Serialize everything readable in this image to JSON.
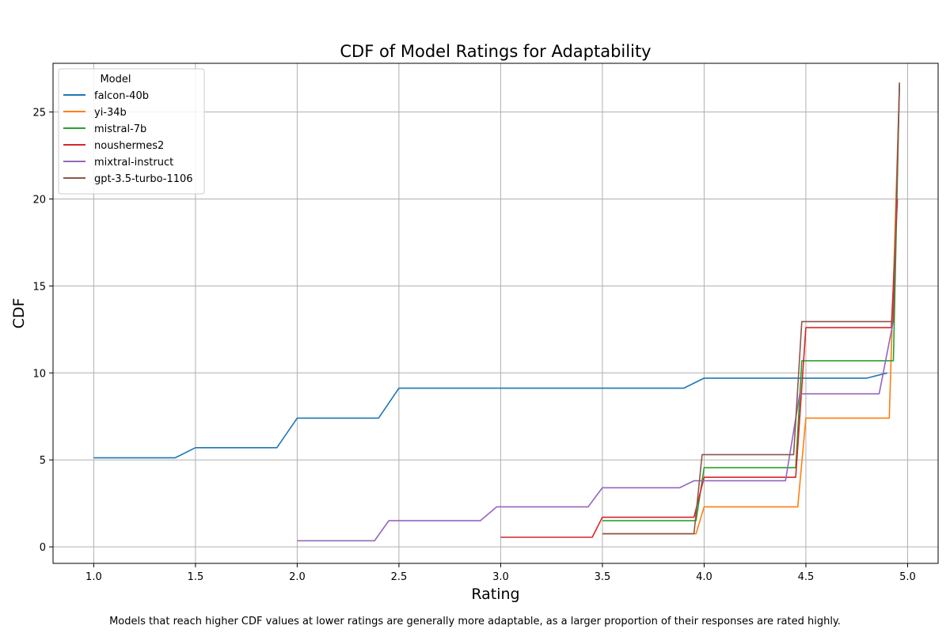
{
  "chart_data": {
    "type": "line",
    "title": "CDF of Model Ratings for Adaptability",
    "xlabel": "Rating",
    "ylabel": "CDF",
    "xlim": [
      0.8,
      5.15
    ],
    "ylim": [
      -0.95,
      27.8
    ],
    "xticks": [
      1.0,
      1.5,
      2.0,
      2.5,
      3.0,
      3.5,
      4.0,
      4.5,
      5.0
    ],
    "xtick_labels": [
      "1.0",
      "1.5",
      "2.0",
      "2.5",
      "3.0",
      "3.5",
      "4.0",
      "4.5",
      "5.0"
    ],
    "yticks": [
      0,
      5,
      10,
      15,
      20,
      25
    ],
    "ytick_labels": [
      "0",
      "5",
      "10",
      "15",
      "20",
      "25"
    ],
    "grid": true,
    "legend": {
      "title": "Model",
      "location": "top-left"
    },
    "series": [
      {
        "name": "falcon-40b",
        "color": "#1f77b4",
        "x": [
          1.0,
          1.4,
          1.5,
          1.9,
          2.0,
          2.4,
          2.5,
          3.9,
          4.0,
          4.8,
          4.9
        ],
        "y": [
          5.12,
          5.12,
          5.7,
          5.7,
          7.4,
          7.4,
          9.12,
          9.12,
          9.7,
          9.7,
          10.0
        ]
      },
      {
        "name": "yi-34b",
        "color": "#ff7f0e",
        "x": [
          3.5,
          3.96,
          4.0,
          4.46,
          4.5,
          4.91,
          4.96
        ],
        "y": [
          0.75,
          0.75,
          2.3,
          2.3,
          7.4,
          7.4,
          26.6
        ]
      },
      {
        "name": "mistral-7b",
        "color": "#2ca02c",
        "x": [
          3.5,
          3.96,
          4.0,
          4.45,
          4.48,
          4.93,
          4.96
        ],
        "y": [
          1.5,
          1.5,
          4.55,
          4.55,
          10.7,
          10.7,
          26.6
        ]
      },
      {
        "name": "noushermes2",
        "color": "#d62728",
        "x": [
          3.0,
          3.45,
          3.5,
          3.95,
          4.0,
          4.45,
          4.5,
          4.92,
          4.95
        ],
        "y": [
          0.55,
          0.55,
          1.7,
          1.7,
          4.0,
          4.0,
          12.6,
          12.6,
          20.0
        ]
      },
      {
        "name": "mixtral-instruct",
        "color": "#9467bd",
        "x": [
          2.0,
          2.38,
          2.45,
          2.9,
          2.98,
          3.43,
          3.5,
          3.88,
          3.95,
          4.4,
          4.47,
          4.86,
          4.93,
          4.96
        ],
        "y": [
          0.35,
          0.35,
          1.5,
          1.5,
          2.3,
          2.3,
          3.4,
          3.4,
          3.8,
          3.8,
          8.8,
          8.8,
          13.0,
          26.6
        ]
      },
      {
        "name": "gpt-3.5-turbo-1106",
        "color": "#8c564b",
        "x": [
          3.5,
          3.95,
          3.99,
          4.44,
          4.48,
          4.93,
          4.96
        ],
        "y": [
          0.75,
          0.75,
          5.3,
          5.3,
          12.95,
          12.95,
          26.7
        ]
      }
    ]
  },
  "caption": "Models that reach higher CDF values at lower ratings are generally more adaptable, as a larger proportion of their responses are rated highly."
}
